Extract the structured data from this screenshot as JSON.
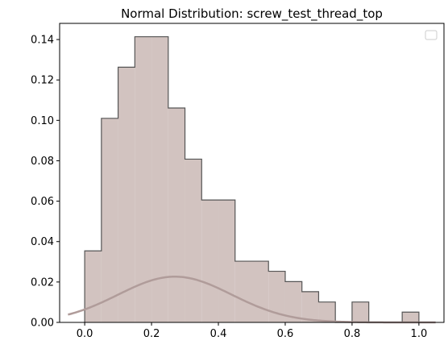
{
  "chart_data": {
    "type": "bar",
    "title": "Normal Distribution: screw_test_thread_top",
    "xlabel": "",
    "ylabel": "",
    "xlim": [
      -0.075,
      1.075
    ],
    "ylim": [
      0,
      0.148
    ],
    "x_ticks": [
      "0.0",
      "0.2",
      "0.4",
      "0.6",
      "0.8",
      "1.0"
    ],
    "x_tick_values": [
      0.0,
      0.2,
      0.4,
      0.6,
      0.8,
      1.0
    ],
    "y_ticks": [
      "0.00",
      "0.02",
      "0.04",
      "0.06",
      "0.08",
      "0.10",
      "0.12",
      "0.14"
    ],
    "y_tick_values": [
      0.0,
      0.02,
      0.04,
      0.06,
      0.08,
      0.1,
      0.12,
      0.14
    ],
    "histogram": {
      "bin_edges": [
        0.0,
        0.05,
        0.1,
        0.15,
        0.2,
        0.25,
        0.3,
        0.35,
        0.4,
        0.45,
        0.5,
        0.55,
        0.6,
        0.65,
        0.7,
        0.75,
        0.8,
        0.85,
        0.9,
        0.95,
        1.0
      ],
      "values": [
        0.0354,
        0.101,
        0.1263,
        0.1414,
        0.1414,
        0.1061,
        0.0808,
        0.0606,
        0.0606,
        0.0303,
        0.0303,
        0.0253,
        0.0202,
        0.0152,
        0.0101,
        0.0,
        0.0101,
        0.0,
        0.0,
        0.0051
      ],
      "fill_color": "#d2c3c0",
      "edge_color": "#555555"
    },
    "curve": {
      "type": "normal_pdf",
      "mean": 0.27,
      "std": 0.17,
      "scale": 0.00965,
      "x_range": [
        -0.05,
        1.05
      ],
      "color": "#b09c9a"
    },
    "grid": false,
    "legend": {
      "placement": "top-right",
      "entries": []
    }
  }
}
